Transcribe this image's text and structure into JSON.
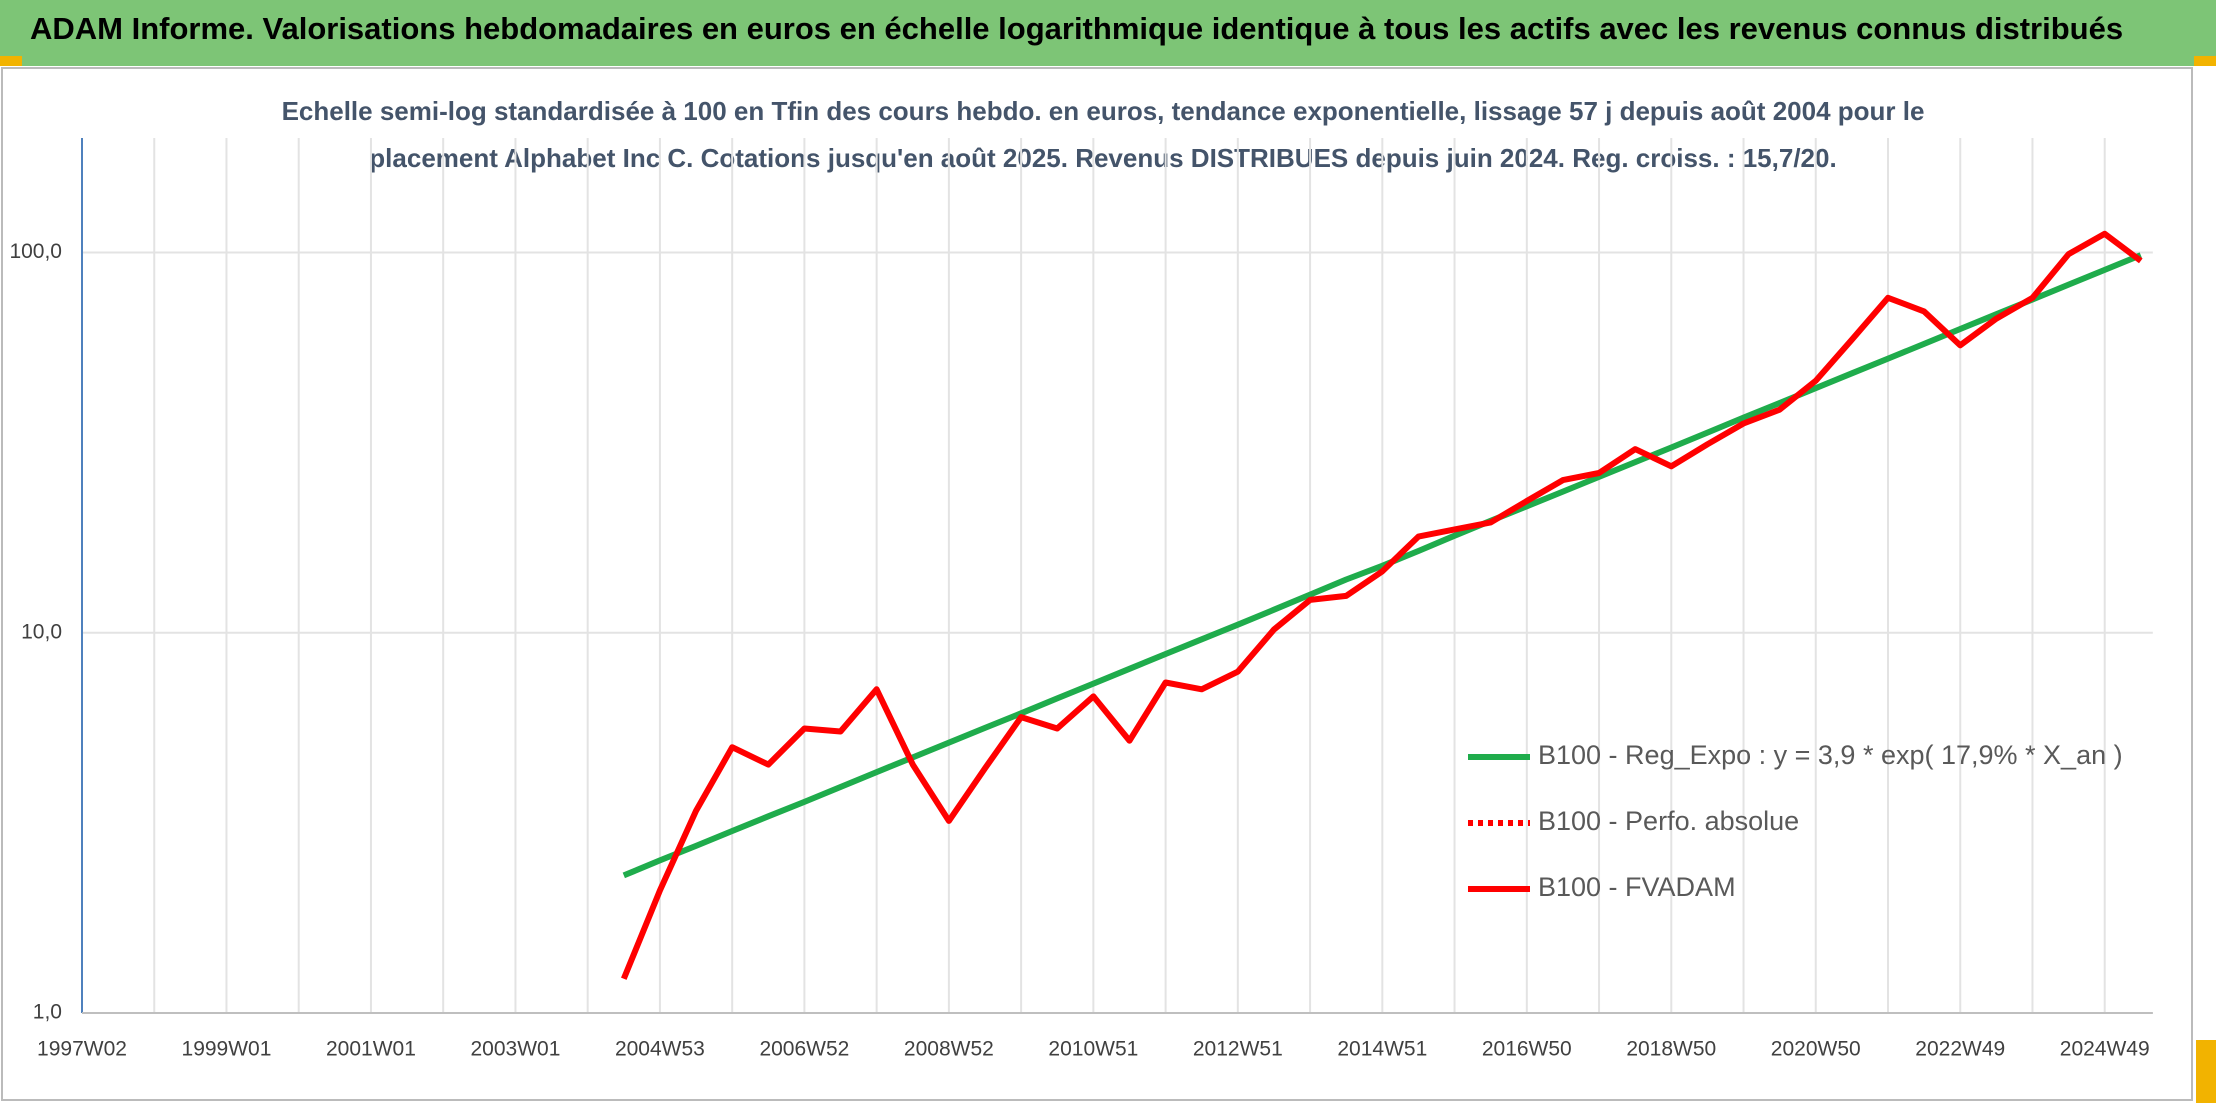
{
  "header": {
    "title": "ADAM Informe. Valorisations hebdomadaires en euros en échelle logarithmique identique à tous les actifs avec les revenus connus distribués"
  },
  "chart_data": {
    "type": "line",
    "subtitle": [
      "Echelle semi-log standardisée à 100 en Tfin des cours hebdo. en euros, tendance exponentielle, lissage 57 j depuis août 2004 pour le",
      "placement Alphabet Inc C. Cotations jusqu'en août 2025. Revenus DISTRIBUES depuis juin 2024. Reg. croiss. : 15,7/20."
    ],
    "categories": [
      "1997W02",
      null,
      null,
      null,
      "1999W01",
      null,
      null,
      null,
      "2001W01",
      null,
      null,
      null,
      "2003W01",
      null,
      null,
      null,
      "2004W53",
      null,
      null,
      null,
      "2006W52",
      null,
      null,
      null,
      "2008W52",
      null,
      null,
      null,
      "2010W51",
      null,
      null,
      null,
      "2012W51",
      null,
      null,
      null,
      "2014W51",
      null,
      null,
      null,
      "2016W50",
      null,
      null,
      null,
      "2018W50",
      null,
      null,
      null,
      "2020W50",
      null,
      null,
      null,
      "2022W49",
      null,
      null,
      null,
      "2024W49",
      null
    ],
    "series": [
      {
        "name": "B100 - Reg_Expo : y = 3,9 * exp( 17,9% *  X_an )",
        "color": "#1fac4c",
        "style": "solid",
        "values": [
          null,
          null,
          null,
          null,
          null,
          null,
          null,
          null,
          null,
          null,
          null,
          null,
          null,
          null,
          null,
          2.3,
          2.52,
          2.75,
          3.01,
          3.29,
          3.59,
          3.93,
          4.3,
          4.7,
          5.14,
          5.62,
          6.14,
          6.72,
          7.35,
          8.04,
          8.79,
          9.61,
          10.5,
          11.5,
          12.6,
          13.8,
          15.0,
          16.4,
          18.0,
          19.7,
          21.5,
          23.5,
          25.7,
          28.1,
          30.7,
          33.6,
          36.8,
          40.2,
          44.0,
          48.1,
          52.6,
          57.5,
          62.9,
          68.8,
          75.2,
          82.3,
          90.0,
          98.4
        ]
      },
      {
        "name": "B100 - Perfo. absolue",
        "color": "#ff0000",
        "style": "dotted",
        "values": [
          null,
          null,
          null,
          null,
          null,
          null,
          null,
          null,
          null,
          null,
          null,
          null,
          null,
          null,
          null,
          null,
          null,
          null,
          null,
          null,
          null,
          null,
          null,
          null,
          null,
          null,
          null,
          null,
          null,
          null,
          null,
          null,
          null,
          null,
          null,
          null,
          null,
          null,
          null,
          null,
          null,
          null,
          null,
          null,
          null,
          null,
          null,
          null,
          null,
          null,
          null,
          null,
          null,
          null,
          null,
          null,
          null,
          null
        ]
      },
      {
        "name": "B100 - FVADAM",
        "color": "#ff0000",
        "style": "solid",
        "values": [
          null,
          null,
          null,
          null,
          null,
          null,
          null,
          null,
          null,
          null,
          null,
          null,
          null,
          null,
          null,
          1.23,
          2.1,
          3.4,
          5.0,
          4.5,
          5.6,
          5.5,
          7.1,
          4.5,
          3.2,
          4.4,
          6.0,
          5.6,
          6.8,
          5.2,
          7.4,
          7.1,
          7.9,
          10.2,
          12.2,
          12.5,
          14.5,
          17.9,
          18.7,
          19.5,
          22.2,
          25.2,
          26.3,
          30.4,
          27.4,
          31.3,
          35.5,
          38.6,
          46,
          59,
          76,
          70,
          57,
          67,
          76,
          99,
          112,
          95
        ]
      }
    ],
    "ylim": [
      1,
      200
    ],
    "log_scale": true,
    "grid": true,
    "legend_position": "right",
    "yticks": [
      {
        "value": 1,
        "label": "1,0"
      },
      {
        "value": 10,
        "label": "10,0"
      },
      {
        "value": 100,
        "label": "100,0"
      }
    ]
  }
}
